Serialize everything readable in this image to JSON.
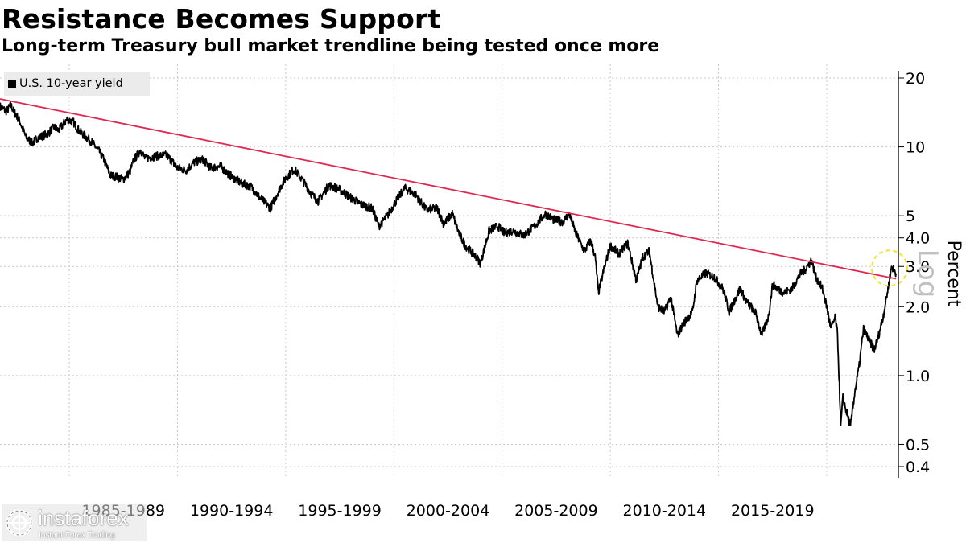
{
  "title": "Resistance Becomes Support",
  "subtitle": "Long-term Treasury bull market trendline being tested once more",
  "watermark": {
    "name": "instaforex",
    "tagline": "Instant Forex Trading",
    "icon": "gear-globe-icon"
  },
  "chart_data": {
    "type": "line",
    "title": "Resistance Becomes Support",
    "subtitle": "Long-term Treasury bull market trendline being tested once more",
    "legend": {
      "position": "top-left",
      "entries": [
        "U.S. 10-year yield"
      ]
    },
    "xlabel": "",
    "ylabel": "Percent",
    "y_scale": "log",
    "y_scale_label": "Log",
    "ylim": [
      0.38,
      22
    ],
    "xlim": [
      1981.3,
      2022.7
    ],
    "grid": true,
    "y_ticks": [
      0.4,
      0.5,
      1.0,
      2.0,
      3.0,
      4.0,
      5,
      10,
      20
    ],
    "y_tick_labels": [
      "0.4",
      "0.5",
      "1.0",
      "2.0",
      "3.0",
      "4.0",
      "5",
      "10",
      "20"
    ],
    "x_gridlines": [
      1984.5,
      1989.5,
      1994.5,
      1999.5,
      2004.5,
      2009.5,
      2014.5,
      2019.5
    ],
    "x_categories": [
      {
        "label": "1985-1989",
        "center": 1987
      },
      {
        "label": "1990-1994",
        "center": 1992
      },
      {
        "label": "1995-1999",
        "center": 1997
      },
      {
        "label": "2000-2004",
        "center": 2002
      },
      {
        "label": "2005-2009",
        "center": 2007
      },
      {
        "label": "2010-2014",
        "center": 2012
      },
      {
        "label": "2015-2019",
        "center": 2017
      }
    ],
    "colors": {
      "series": "#000000",
      "trendline": "#e0284f",
      "highlight": "#f3e331"
    },
    "series": [
      {
        "name": "U.S. 10-year yield",
        "x": [
          1981.3,
          1981.6,
          1981.8,
          1982.0,
          1982.2,
          1982.5,
          1982.8,
          1983.0,
          1983.5,
          1983.8,
          1984.0,
          1984.4,
          1984.7,
          1985.0,
          1985.5,
          1985.9,
          1986.1,
          1986.4,
          1986.7,
          1987.0,
          1987.3,
          1987.5,
          1987.8,
          1988.0,
          1988.5,
          1989.0,
          1989.5,
          1989.9,
          1990.3,
          1990.7,
          1991.0,
          1991.5,
          1992.0,
          1992.5,
          1992.9,
          1993.3,
          1993.8,
          1994.2,
          1994.5,
          1994.9,
          1995.3,
          1995.7,
          1996.0,
          1996.5,
          1997.0,
          1997.5,
          1998.0,
          1998.5,
          1998.8,
          1999.2,
          1999.6,
          2000.0,
          2000.5,
          2001.0,
          2001.5,
          2001.8,
          2002.2,
          2002.5,
          2002.8,
          2003.3,
          2003.5,
          2003.9,
          2004.3,
          2004.6,
          2005.0,
          2005.5,
          2006.0,
          2006.5,
          2006.9,
          2007.3,
          2007.6,
          2007.9,
          2008.3,
          2008.6,
          2008.8,
          2008.95,
          2009.2,
          2009.5,
          2009.9,
          2010.3,
          2010.7,
          2011.0,
          2011.3,
          2011.7,
          2012.0,
          2012.3,
          2012.6,
          2012.9,
          2013.3,
          2013.5,
          2013.9,
          2014.3,
          2014.7,
          2015.0,
          2015.2,
          2015.5,
          2015.8,
          2016.2,
          2016.5,
          2016.8,
          2017.0,
          2017.5,
          2017.9,
          2018.3,
          2018.5,
          2018.8,
          2019.0,
          2019.3,
          2019.5,
          2019.7,
          2019.9,
          2020.0,
          2020.15,
          2020.25,
          2020.4,
          2020.6,
          2020.8,
          2021.0,
          2021.2,
          2021.5,
          2021.7,
          2021.9,
          2022.1,
          2022.3,
          2022.5,
          2022.7
        ],
        "y": [
          15.0,
          14.3,
          15.2,
          14.0,
          13.0,
          11.0,
          10.4,
          10.9,
          11.4,
          12.2,
          11.8,
          13.2,
          12.8,
          11.6,
          10.6,
          9.5,
          8.8,
          7.5,
          7.4,
          7.2,
          7.8,
          8.8,
          9.7,
          8.9,
          9.1,
          9.2,
          8.1,
          7.9,
          8.6,
          8.8,
          8.1,
          8.2,
          7.4,
          6.9,
          6.7,
          6.0,
          5.4,
          6.5,
          7.3,
          8.0,
          7.1,
          6.2,
          5.8,
          6.8,
          6.5,
          6.0,
          5.6,
          5.4,
          4.5,
          5.0,
          5.8,
          6.6,
          6.2,
          5.3,
          5.4,
          4.6,
          5.1,
          4.2,
          3.7,
          3.3,
          3.1,
          4.3,
          4.5,
          4.2,
          4.3,
          4.1,
          4.5,
          5.1,
          4.8,
          4.7,
          5.1,
          4.2,
          3.5,
          3.9,
          3.3,
          2.3,
          2.9,
          3.7,
          3.4,
          3.8,
          2.6,
          3.3,
          3.5,
          2.0,
          1.9,
          2.2,
          1.5,
          1.7,
          1.9,
          2.6,
          2.8,
          2.7,
          2.4,
          1.9,
          2.1,
          2.4,
          2.1,
          1.9,
          1.5,
          1.8,
          2.5,
          2.3,
          2.4,
          2.8,
          2.9,
          3.2,
          2.7,
          2.4,
          2.0,
          1.6,
          1.8,
          1.5,
          0.6,
          0.8,
          0.7,
          0.6,
          0.85,
          1.1,
          1.6,
          1.4,
          1.3,
          1.5,
          1.8,
          2.3,
          3.0,
          2.8
        ]
      }
    ],
    "trendline": {
      "x": [
        1981.3,
        2022.7
      ],
      "y": [
        16.2,
        2.65
      ]
    },
    "highlight_circle": {
      "x": 2022.4,
      "y": 2.95
    }
  }
}
